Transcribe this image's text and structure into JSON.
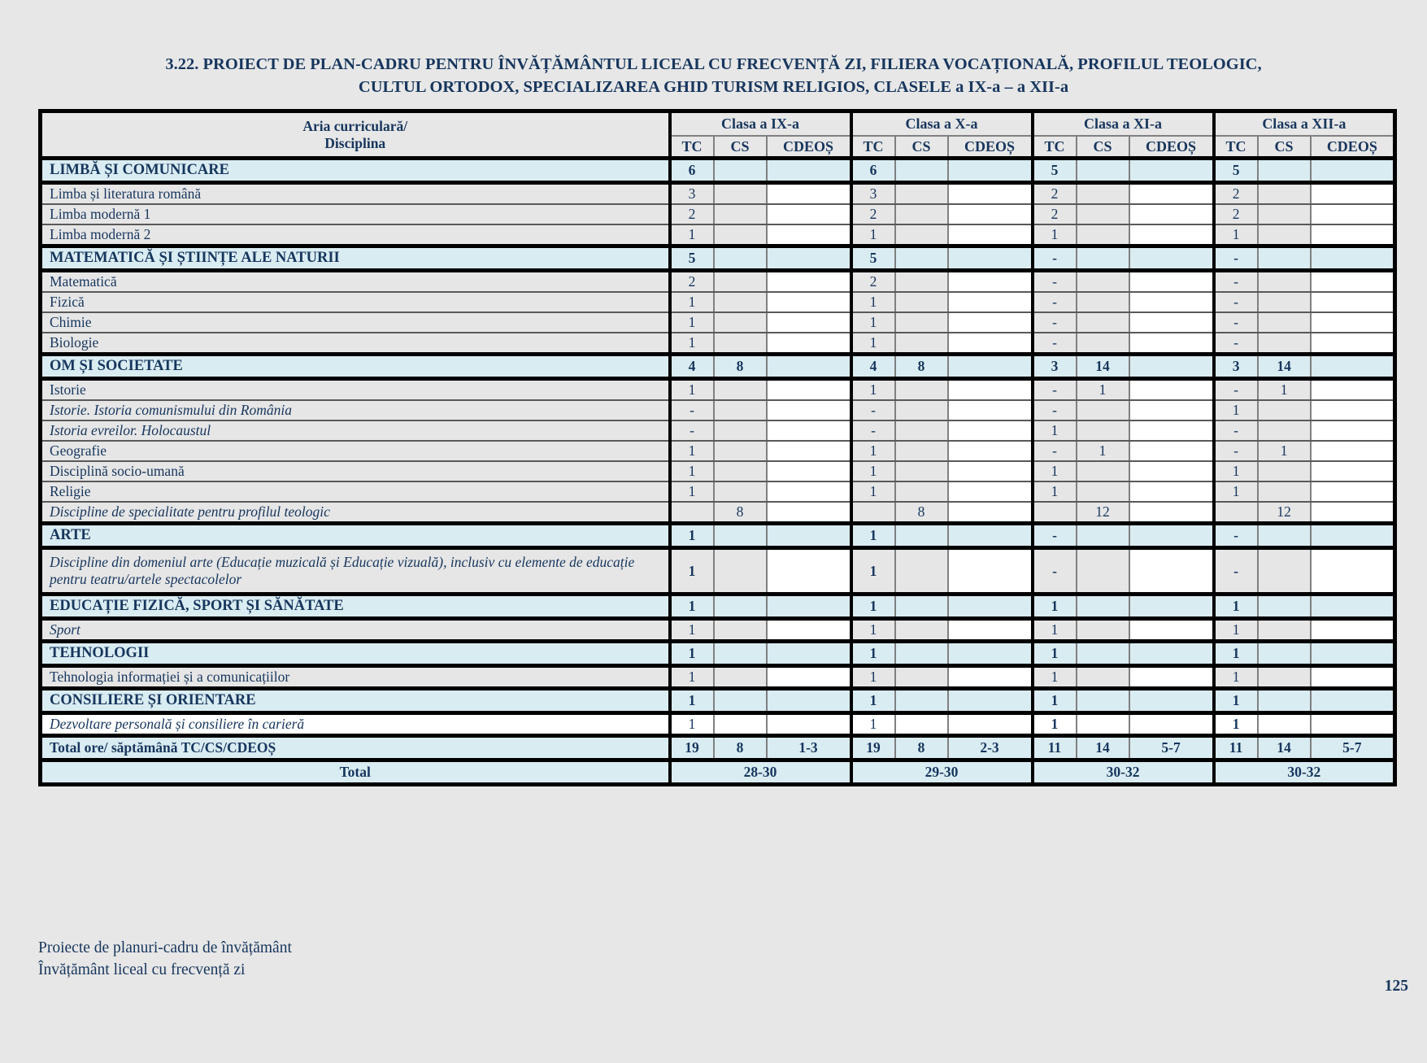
{
  "page": {
    "title_line1": "3.22. PROIECT DE PLAN-CADRU PENTRU ÎNVĂȚĂMÂNTUL LICEAL CU FRECVENȚĂ ZI, FILIERA VOCAȚIONALĂ, PROFILUL TEOLOGIC,",
    "title_line2": "CULTUL ORTODOX, SPECIALIZAREA GHID TURISM RELIGIOS, CLASELE a IX-a – a XII-a",
    "footer_line1": "Proiecte de planuri-cadru de învățământ",
    "footer_line2": "Învățământ liceal cu frecvență zi",
    "page_number": "125"
  },
  "colors": {
    "text_navy": "#17365d",
    "section_blue": "#d9ecf2",
    "cell_gray": "#e6e6e6",
    "cell_white": "#ffffff",
    "page_gray": "#e7e7e7"
  },
  "table": {
    "header": {
      "aria_line1": "Aria curriculară/",
      "aria_line2": "Disciplina",
      "classes": [
        "Clasa a IX-a",
        "Clasa a X-a",
        "Clasa a XI-a",
        "Clasa a XII-a"
      ],
      "subcols": [
        "TC",
        "CS",
        "CDEOȘ"
      ]
    },
    "rows": [
      {
        "style": "sec",
        "label": "LIMBĂ ȘI COMUNICARE",
        "values": [
          "6",
          "",
          "",
          "6",
          "",
          "",
          "5",
          "",
          "",
          "5",
          "",
          ""
        ]
      },
      {
        "style": "norm",
        "label": "Limba și literatura română",
        "values": [
          "3",
          "",
          "",
          "3",
          "",
          "",
          "2",
          "",
          "",
          "2",
          "",
          ""
        ]
      },
      {
        "style": "norm",
        "label": "Limba modernă 1",
        "values": [
          "2",
          "",
          "",
          "2",
          "",
          "",
          "2",
          "",
          "",
          "2",
          "",
          ""
        ]
      },
      {
        "style": "norm",
        "label": "Limba modernă 2",
        "values": [
          "1",
          "",
          "",
          "1",
          "",
          "",
          "1",
          "",
          "",
          "1",
          "",
          ""
        ]
      },
      {
        "style": "sec",
        "label": "MATEMATICĂ ȘI ȘTIINȚE ALE NATURII",
        "values": [
          "5",
          "",
          "",
          "5",
          "",
          "",
          "-",
          "",
          "",
          "-",
          "",
          ""
        ]
      },
      {
        "style": "norm",
        "label": "Matematică",
        "values": [
          "2",
          "",
          "",
          "2",
          "",
          "",
          "-",
          "",
          "",
          "-",
          "",
          ""
        ]
      },
      {
        "style": "norm",
        "label": "Fizică",
        "values": [
          "1",
          "",
          "",
          "1",
          "",
          "",
          "-",
          "",
          "",
          "-",
          "",
          ""
        ]
      },
      {
        "style": "norm",
        "label": "Chimie",
        "values": [
          "1",
          "",
          "",
          "1",
          "",
          "",
          "-",
          "",
          "",
          "-",
          "",
          ""
        ]
      },
      {
        "style": "norm",
        "label": "Biologie",
        "values": [
          "1",
          "",
          "",
          "1",
          "",
          "",
          "-",
          "",
          "",
          "-",
          "",
          ""
        ]
      },
      {
        "style": "sec",
        "label": "OM ȘI SOCIETATE",
        "values": [
          "4",
          "8",
          "",
          "4",
          "8",
          "",
          "3",
          "14",
          "",
          "3",
          "14",
          ""
        ]
      },
      {
        "style": "norm",
        "label": "Istorie",
        "values": [
          "1",
          "",
          "",
          "1",
          "",
          "",
          "-",
          "1",
          "",
          "-",
          "1",
          ""
        ]
      },
      {
        "style": "norm it",
        "label": "Istorie. Istoria comunismului din România",
        "values": [
          "-",
          "",
          "",
          "-",
          "",
          "",
          "-",
          "",
          "",
          "1",
          "",
          ""
        ]
      },
      {
        "style": "norm it",
        "label": "Istoria evreilor. Holocaustul",
        "values": [
          "-",
          "",
          "",
          "-",
          "",
          "",
          "1",
          "",
          "",
          "-",
          "",
          ""
        ]
      },
      {
        "style": "norm",
        "label": "Geografie",
        "values": [
          "1",
          "",
          "",
          "1",
          "",
          "",
          "-",
          "1",
          "",
          "-",
          "1",
          ""
        ]
      },
      {
        "style": "norm",
        "label": "Disciplină socio-umană",
        "values": [
          "1",
          "",
          "",
          "1",
          "",
          "",
          "1",
          "",
          "",
          "1",
          "",
          ""
        ]
      },
      {
        "style": "norm",
        "label": "Religie",
        "values": [
          "1",
          "",
          "",
          "1",
          "",
          "",
          "1",
          "",
          "",
          "1",
          "",
          ""
        ]
      },
      {
        "style": "norm it",
        "label": "Discipline de specialitate pentru profilul teologic",
        "values": [
          "",
          "8",
          "",
          "",
          "8",
          "",
          "",
          "12",
          "",
          "",
          "12",
          ""
        ]
      },
      {
        "style": "sec",
        "label": "ARTE",
        "values": [
          "1",
          "",
          "",
          "1",
          "",
          "",
          "-",
          "",
          "",
          "-",
          "",
          ""
        ]
      },
      {
        "style": "norm it tall",
        "label": "Discipline din domeniul arte (Educație muzicală și Educație vizuală), inclusiv cu elemente de educație pentru teatru/artele spectacolelor",
        "values": [
          "1",
          "",
          "",
          "1",
          "",
          "",
          "-",
          "",
          "",
          "-",
          "",
          ""
        ],
        "bold_values": true
      },
      {
        "style": "sec",
        "label": "EDUCAȚIE FIZICĂ, SPORT ȘI SĂNĂTATE",
        "values": [
          "1",
          "",
          "",
          "1",
          "",
          "",
          "1",
          "",
          "",
          "1",
          "",
          ""
        ]
      },
      {
        "style": "norm it",
        "label": "Sport",
        "values": [
          "1",
          "",
          "",
          "1",
          "",
          "",
          "1",
          "",
          "",
          "1",
          "",
          ""
        ]
      },
      {
        "style": "sec",
        "label": "TEHNOLOGII",
        "values": [
          "1",
          "",
          "",
          "1",
          "",
          "",
          "1",
          "",
          "",
          "1",
          "",
          ""
        ]
      },
      {
        "style": "norm",
        "label": "Tehnologia informației și a comunicațiilor",
        "values": [
          "1",
          "",
          "",
          "1",
          "",
          "",
          "1",
          "",
          "",
          "1",
          "",
          ""
        ]
      },
      {
        "style": "sec",
        "label": "CONSILIERE ȘI ORIENTARE",
        "values": [
          "1",
          "",
          "",
          "1",
          "",
          "",
          "1",
          "",
          "",
          "1",
          "",
          ""
        ]
      },
      {
        "style": "norm it white",
        "label": "Dezvoltare personală și consiliere în carieră",
        "values": [
          "1",
          "",
          "",
          "1",
          "",
          "",
          "1",
          "",
          "",
          "1",
          "",
          ""
        ],
        "bold_cells": [
          6,
          9
        ]
      },
      {
        "style": "tot",
        "label": "Total ore/ săptămână TC/CS/CDEOȘ",
        "values": [
          "19",
          "8",
          "1-3",
          "19",
          "8",
          "2-3",
          "11",
          "14",
          "5-7",
          "11",
          "14",
          "5-7"
        ]
      },
      {
        "style": "tot gt",
        "label": "Total",
        "merged_values": [
          "28-30",
          "29-30",
          "30-32",
          "30-32"
        ]
      }
    ]
  }
}
